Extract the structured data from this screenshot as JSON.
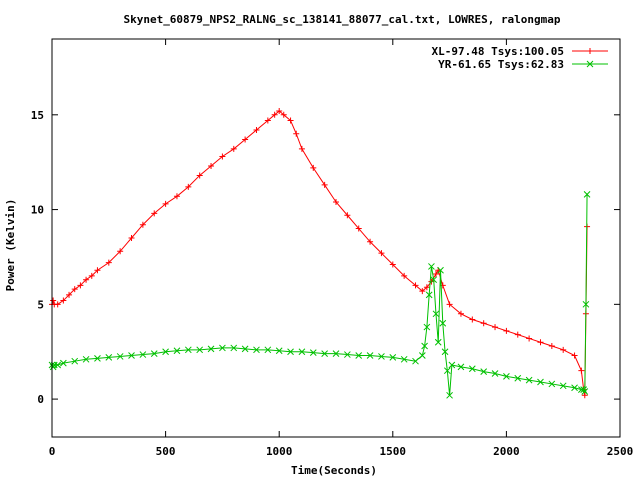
{
  "chart_data": {
    "type": "line",
    "title": "Skynet_60879_NPS2_RALNG_sc_138141_88077_cal.txt, LOWRES, ralongmap",
    "xlabel": "Time(Seconds)",
    "ylabel": "Power (Kelvin)",
    "xlim": [
      0,
      2500
    ],
    "ylim": [
      -2,
      19
    ],
    "xticks": [
      0,
      500,
      1000,
      1500,
      2000,
      2500
    ],
    "yticks": [
      0,
      5,
      10,
      15
    ],
    "grid": false,
    "legend_position": "top-right",
    "series": [
      {
        "name": "XL-97.48 Tsys:100.05",
        "color": "#ff0000",
        "marker": "plus",
        "x": [
          0,
          5,
          10,
          25,
          50,
          75,
          100,
          125,
          150,
          175,
          200,
          250,
          300,
          350,
          400,
          450,
          500,
          550,
          600,
          650,
          700,
          750,
          800,
          850,
          900,
          950,
          980,
          1000,
          1020,
          1050,
          1075,
          1100,
          1150,
          1200,
          1250,
          1300,
          1350,
          1400,
          1450,
          1500,
          1550,
          1600,
          1630,
          1650,
          1670,
          1690,
          1700,
          1720,
          1750,
          1800,
          1850,
          1900,
          1950,
          2000,
          2050,
          2100,
          2150,
          2200,
          2250,
          2300,
          2330,
          2340,
          2345,
          2350,
          2355
        ],
        "y": [
          5.0,
          5.2,
          5.0,
          5.0,
          5.2,
          5.5,
          5.8,
          6.0,
          6.3,
          6.5,
          6.8,
          7.2,
          7.8,
          8.5,
          9.2,
          9.8,
          10.3,
          10.7,
          11.2,
          11.8,
          12.3,
          12.8,
          13.2,
          13.7,
          14.2,
          14.7,
          15.0,
          15.2,
          15.0,
          14.7,
          14.0,
          13.2,
          12.2,
          11.3,
          10.4,
          9.7,
          9.0,
          8.3,
          7.7,
          7.1,
          6.5,
          6.0,
          5.7,
          5.9,
          6.2,
          6.6,
          6.8,
          6.0,
          5.0,
          4.5,
          4.2,
          4.0,
          3.8,
          3.6,
          3.4,
          3.2,
          3.0,
          2.8,
          2.6,
          2.3,
          1.5,
          0.5,
          0.2,
          4.5,
          9.1
        ]
      },
      {
        "name": "YR-61.65 Tsys:62.83",
        "color": "#00c000",
        "marker": "cross",
        "x": [
          0,
          5,
          10,
          25,
          50,
          100,
          150,
          200,
          250,
          300,
          350,
          400,
          450,
          500,
          550,
          600,
          650,
          700,
          750,
          800,
          850,
          900,
          950,
          1000,
          1050,
          1100,
          1150,
          1200,
          1250,
          1300,
          1350,
          1400,
          1450,
          1500,
          1550,
          1600,
          1630,
          1640,
          1650,
          1660,
          1670,
          1680,
          1690,
          1700,
          1710,
          1720,
          1730,
          1740,
          1750,
          1760,
          1800,
          1850,
          1900,
          1950,
          2000,
          2050,
          2100,
          2150,
          2200,
          2250,
          2300,
          2330,
          2340,
          2345,
          2350,
          2355
        ],
        "y": [
          1.8,
          1.7,
          1.8,
          1.8,
          1.9,
          2.0,
          2.1,
          2.15,
          2.2,
          2.25,
          2.3,
          2.35,
          2.4,
          2.5,
          2.55,
          2.6,
          2.6,
          2.65,
          2.7,
          2.7,
          2.65,
          2.6,
          2.6,
          2.55,
          2.5,
          2.5,
          2.45,
          2.4,
          2.4,
          2.35,
          2.3,
          2.3,
          2.25,
          2.2,
          2.1,
          2.0,
          2.3,
          2.8,
          3.8,
          5.5,
          7.0,
          6.3,
          4.5,
          3.0,
          6.8,
          4.0,
          2.5,
          1.5,
          0.2,
          1.8,
          1.7,
          1.6,
          1.45,
          1.35,
          1.2,
          1.1,
          1.0,
          0.9,
          0.8,
          0.7,
          0.6,
          0.5,
          0.5,
          0.4,
          5.0,
          10.8
        ]
      }
    ]
  }
}
